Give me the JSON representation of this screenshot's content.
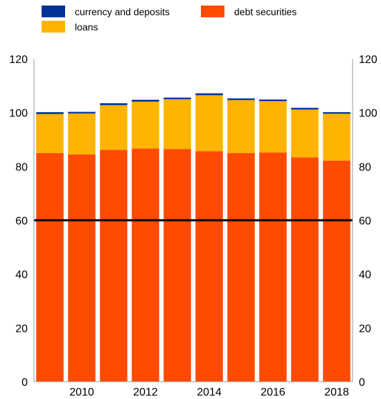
{
  "chart_data": {
    "type": "bar",
    "stacked": true,
    "categories": [
      "2009",
      "2010",
      "2011",
      "2012",
      "2013",
      "2014",
      "2015",
      "2016",
      "2017",
      "2018"
    ],
    "x_tick_labels": [
      "",
      "2010",
      "",
      "2012",
      "",
      "2014",
      "",
      "2016",
      "",
      "2018"
    ],
    "series": [
      {
        "name": "debt securities",
        "color": "#ff4b00",
        "values": [
          85.0,
          84.5,
          86.2,
          86.7,
          86.5,
          85.7,
          85.0,
          85.2,
          83.4,
          82.2
        ]
      },
      {
        "name": "loans",
        "color": "#ffb400",
        "values": [
          14.5,
          15.2,
          16.6,
          17.4,
          18.5,
          20.8,
          19.7,
          19.1,
          17.8,
          17.4
        ]
      },
      {
        "name": "currency and deposits",
        "color": "#003299",
        "values": [
          0.7,
          0.6,
          0.7,
          0.7,
          0.6,
          0.7,
          0.6,
          0.6,
          0.6,
          0.6
        ]
      }
    ],
    "reference_line": {
      "value": 60,
      "color": "#000000"
    },
    "ylim": [
      0,
      120
    ],
    "y_ticks": [
      0,
      20,
      40,
      60,
      80,
      100,
      120
    ],
    "y_tick_labels": [
      "0",
      "20",
      "40",
      "60",
      "80",
      "100",
      "120"
    ],
    "grid": false,
    "legend_position": "top",
    "title": "",
    "xlabel": "",
    "ylabel": ""
  }
}
